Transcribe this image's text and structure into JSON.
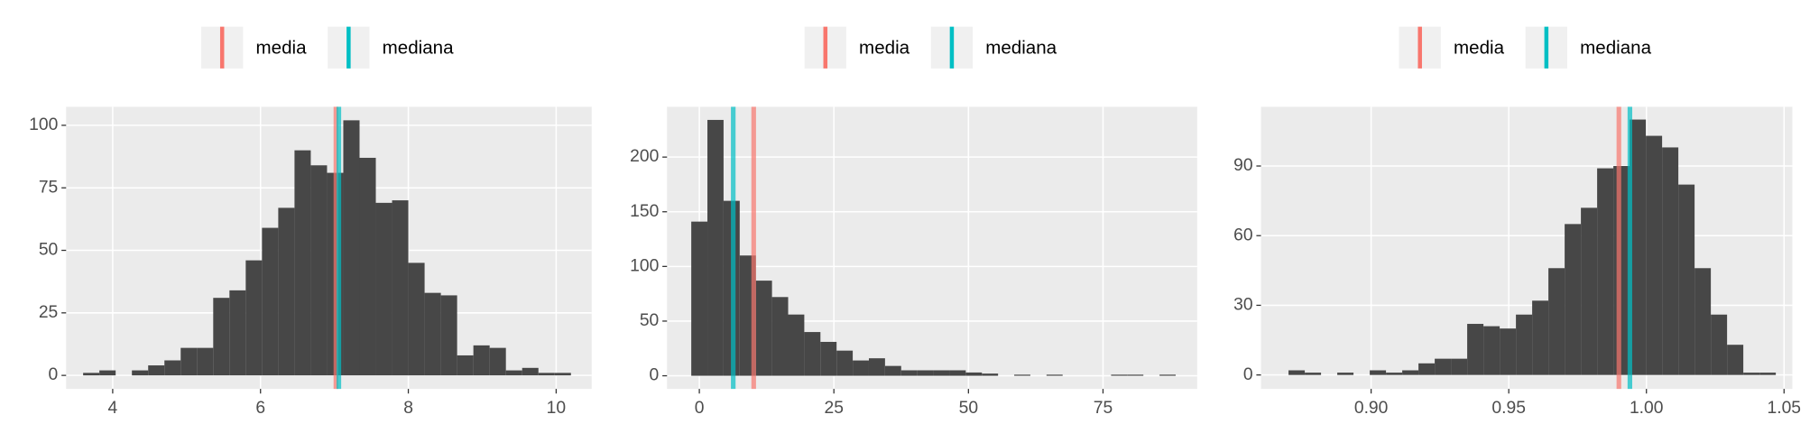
{
  "chart_data": [
    {
      "type": "histogram",
      "color": "#474747",
      "bins": [
        3.6,
        3.82,
        4.04,
        4.26,
        4.48,
        4.7,
        4.92,
        5.14,
        5.36,
        5.58,
        5.8,
        6.02,
        6.24,
        6.46,
        6.68,
        6.9,
        7.12,
        7.34,
        7.56,
        7.78,
        8.0,
        8.22,
        8.44,
        8.66,
        8.88,
        9.1,
        9.32,
        9.54,
        9.76,
        9.98,
        10.2
      ],
      "values": [
        1,
        2,
        0,
        2,
        4,
        6,
        11,
        11,
        31,
        34,
        46,
        59,
        67,
        90,
        84,
        81,
        102,
        87,
        69,
        70,
        45,
        33,
        32,
        8,
        12,
        11,
        2,
        3,
        1,
        1
      ],
      "lines": [
        {
          "name": "media",
          "color": "#F8766D",
          "value": 7.02
        },
        {
          "name": "mediana",
          "color": "#00BFC4",
          "value": 7.06
        }
      ],
      "xlim": [
        3.37,
        10.48
      ],
      "ylim": [
        -5.4,
        107.4
      ],
      "xticks": [
        4,
        6,
        8,
        10
      ],
      "yticks": [
        0,
        25,
        50,
        75,
        100
      ],
      "grid": true
    },
    {
      "type": "histogram",
      "color": "#474747",
      "bins": [
        -1.5,
        1.5,
        4.5,
        7.5,
        10.5,
        13.5,
        16.5,
        19.5,
        22.5,
        25.5,
        28.5,
        31.5,
        34.5,
        37.5,
        40.5,
        43.5,
        46.5,
        49.5,
        52.5,
        55.5,
        58.5,
        61.5,
        64.5,
        67.5,
        70.5,
        73.5,
        76.5,
        79.5,
        82.5,
        85.5,
        88.5
      ],
      "values": [
        141,
        234,
        160,
        110,
        87,
        72,
        56,
        40,
        31,
        23,
        14,
        16,
        9,
        5,
        5,
        5,
        5,
        3,
        2,
        0,
        1,
        0,
        1,
        0,
        0,
        0,
        1,
        1,
        0,
        1
      ],
      "lines": [
        {
          "name": "media",
          "color": "#F8766D",
          "value": 10.1
        },
        {
          "name": "mediana",
          "color": "#00BFC4",
          "value": 6.3
        }
      ],
      "xlim": [
        -6,
        92.5
      ],
      "ylim": [
        -12,
        246
      ],
      "xticks": [
        0,
        25,
        50,
        75
      ],
      "yticks": [
        0,
        50,
        100,
        150,
        200
      ],
      "grid": true
    },
    {
      "type": "histogram",
      "color": "#474747",
      "bins": [
        0.87,
        0.8759,
        0.8818,
        0.8877,
        0.8936,
        0.8995,
        0.9054,
        0.9113,
        0.9172,
        0.9231,
        0.929,
        0.9349,
        0.9408,
        0.9467,
        0.9526,
        0.9585,
        0.9644,
        0.9703,
        0.9762,
        0.9821,
        0.988,
        0.9939,
        0.9998,
        1.0057,
        1.0116,
        1.0175,
        1.0234,
        1.0293,
        1.0352,
        1.0411,
        1.047
      ],
      "values": [
        2,
        1,
        0,
        1,
        0,
        2,
        1,
        2,
        5,
        7,
        7,
        22,
        21,
        20,
        26,
        32,
        46,
        65,
        72,
        89,
        90,
        110,
        103,
        98,
        82,
        46,
        26,
        13,
        1,
        1
      ],
      "lines": [
        {
          "name": "media",
          "color": "#F8766D",
          "value": 0.99
        },
        {
          "name": "mediana",
          "color": "#00BFC4",
          "value": 0.994
        }
      ],
      "xlim": [
        0.86,
        1.053
      ],
      "ylim": [
        -6,
        115.5
      ],
      "xticks": [
        {
          "value": 0.9,
          "label": "0.90"
        },
        0.95,
        {
          "value": 1,
          "label": "1.00"
        },
        1.05
      ],
      "yticks": [
        0,
        30,
        60,
        90
      ],
      "grid": true
    }
  ]
}
